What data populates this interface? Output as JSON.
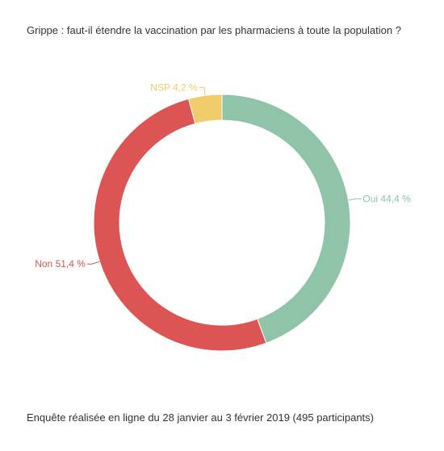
{
  "chart_data": {
    "type": "pie",
    "donut": true,
    "title": "Grippe : faut-il étendre la vaccination par les pharmaciens à toute la population ?",
    "caption": "Enquête réalisée en ligne du 28 janvier au 3 février 2019  (495 participants)",
    "slices": [
      {
        "label": "Oui 44,4 %",
        "value": 44.4,
        "color": "#8fc4a8"
      },
      {
        "label": "Non 51,4 %",
        "value": 51.4,
        "color": "#dc5454"
      },
      {
        "label": "NSP 4,2 %",
        "value": 4.2,
        "color": "#f0cc6a"
      }
    ],
    "legend": "none"
  }
}
